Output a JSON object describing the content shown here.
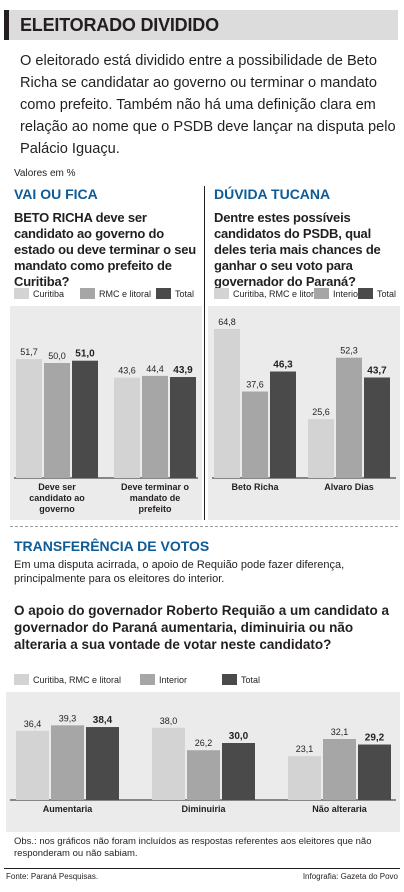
{
  "header": {
    "title": "ELEITORADO DIVIDIDO"
  },
  "intro": "O eleitorado está dividido entre a possibilidade de Beto Richa se candidatar ao governo ou terminar o mandato como prefeito. Também não há uma definição clara em relação ao nome que o PSDB deve lançar na disputa pelo Palácio Iguaçu.",
  "units_note": "Valores em %",
  "left": {
    "section": "VAI OU FICA",
    "question": "BETO RICHA deve ser candidato ao governo do estado ou deve terminar o seu mandato como prefeito de Curitiba?",
    "legend": [
      "Curitiba",
      "RMC e litoral",
      "Total"
    ]
  },
  "right": {
    "section": "DÚVIDA TUCANA",
    "question": "Dentre estes possíveis candidatos do PSDB, qual deles teria mais chances de ganhar o seu voto para governador do Paraná?",
    "legend": [
      "Curitiba, RMC e litoral",
      "Interior",
      "Total"
    ]
  },
  "bottom": {
    "section": "TRANSFERÊNCIA DE VOTOS",
    "text": "Em uma disputa acirrada, o apoio de Requião pode fazer diferença, principalmente para os eleitores do interior.",
    "question": "O apoio do governador Roberto Requião a um candidato a governador do Paraná aumentaria, diminuiria ou não alteraria a sua vontade de votar neste candidato?",
    "legend": [
      "Curitiba, RMC e litoral",
      "Interior",
      "Total"
    ]
  },
  "footer": {
    "obs": "Obs.: nos gráficos não foram incluídos as respostas referentes aos eleitores que não responderam ou não sabiam.",
    "source": "Fonte: Paraná Pesquisas.",
    "credit": "Infografia: Gazeta do Povo"
  },
  "colors": {
    "c0": "#d3d3d3",
    "c1": "#a6a6a6",
    "c2": "#4a4a4a",
    "accent": "#0d5b97",
    "panel": "#ebebeb"
  },
  "chart_data": [
    {
      "type": "bar",
      "title": "VAI OU FICA",
      "categories": [
        "Deve ser candidato ao governo",
        "Deve terminar o mandato de prefeito"
      ],
      "series": [
        {
          "name": "Curitiba",
          "values": [
            51.7,
            43.6
          ]
        },
        {
          "name": "RMC e litoral",
          "values": [
            50.0,
            44.4
          ]
        },
        {
          "name": "Total",
          "values": [
            51.0,
            43.9
          ]
        }
      ],
      "labels": [
        [
          "51,7",
          "50,0",
          "51,0"
        ],
        [
          "43,6",
          "44,4",
          "43,9"
        ]
      ],
      "ylim": [
        0,
        100
      ]
    },
    {
      "type": "bar",
      "title": "DÚVIDA TUCANA",
      "categories": [
        "Beto Richa",
        "Alvaro Dias"
      ],
      "series": [
        {
          "name": "Curitiba, RMC e litoral",
          "values": [
            64.8,
            25.6
          ]
        },
        {
          "name": "Interior",
          "values": [
            37.6,
            52.3
          ]
        },
        {
          "name": "Total",
          "values": [
            46.3,
            43.7
          ]
        }
      ],
      "labels": [
        [
          "64,8",
          "37,6",
          "46,3"
        ],
        [
          "25,6",
          "52,3",
          "43,7"
        ]
      ],
      "ylim": [
        0,
        100
      ]
    },
    {
      "type": "bar",
      "title": "TRANSFERÊNCIA DE VOTOS",
      "categories": [
        "Aumentaria",
        "Diminuiria",
        "Não alteraria"
      ],
      "series": [
        {
          "name": "Curitiba, RMC e litoral",
          "values": [
            36.4,
            38.0,
            23.1
          ]
        },
        {
          "name": "Interior",
          "values": [
            39.3,
            26.2,
            32.1
          ]
        },
        {
          "name": "Total",
          "values": [
            38.4,
            30.0,
            29.2
          ]
        }
      ],
      "labels": [
        [
          "36,4",
          "39,3",
          "38,4"
        ],
        [
          "38,0",
          "26,2",
          "30,0"
        ],
        [
          "23,1",
          "32,1",
          "29,2"
        ]
      ],
      "ylim": [
        0,
        100
      ]
    }
  ]
}
